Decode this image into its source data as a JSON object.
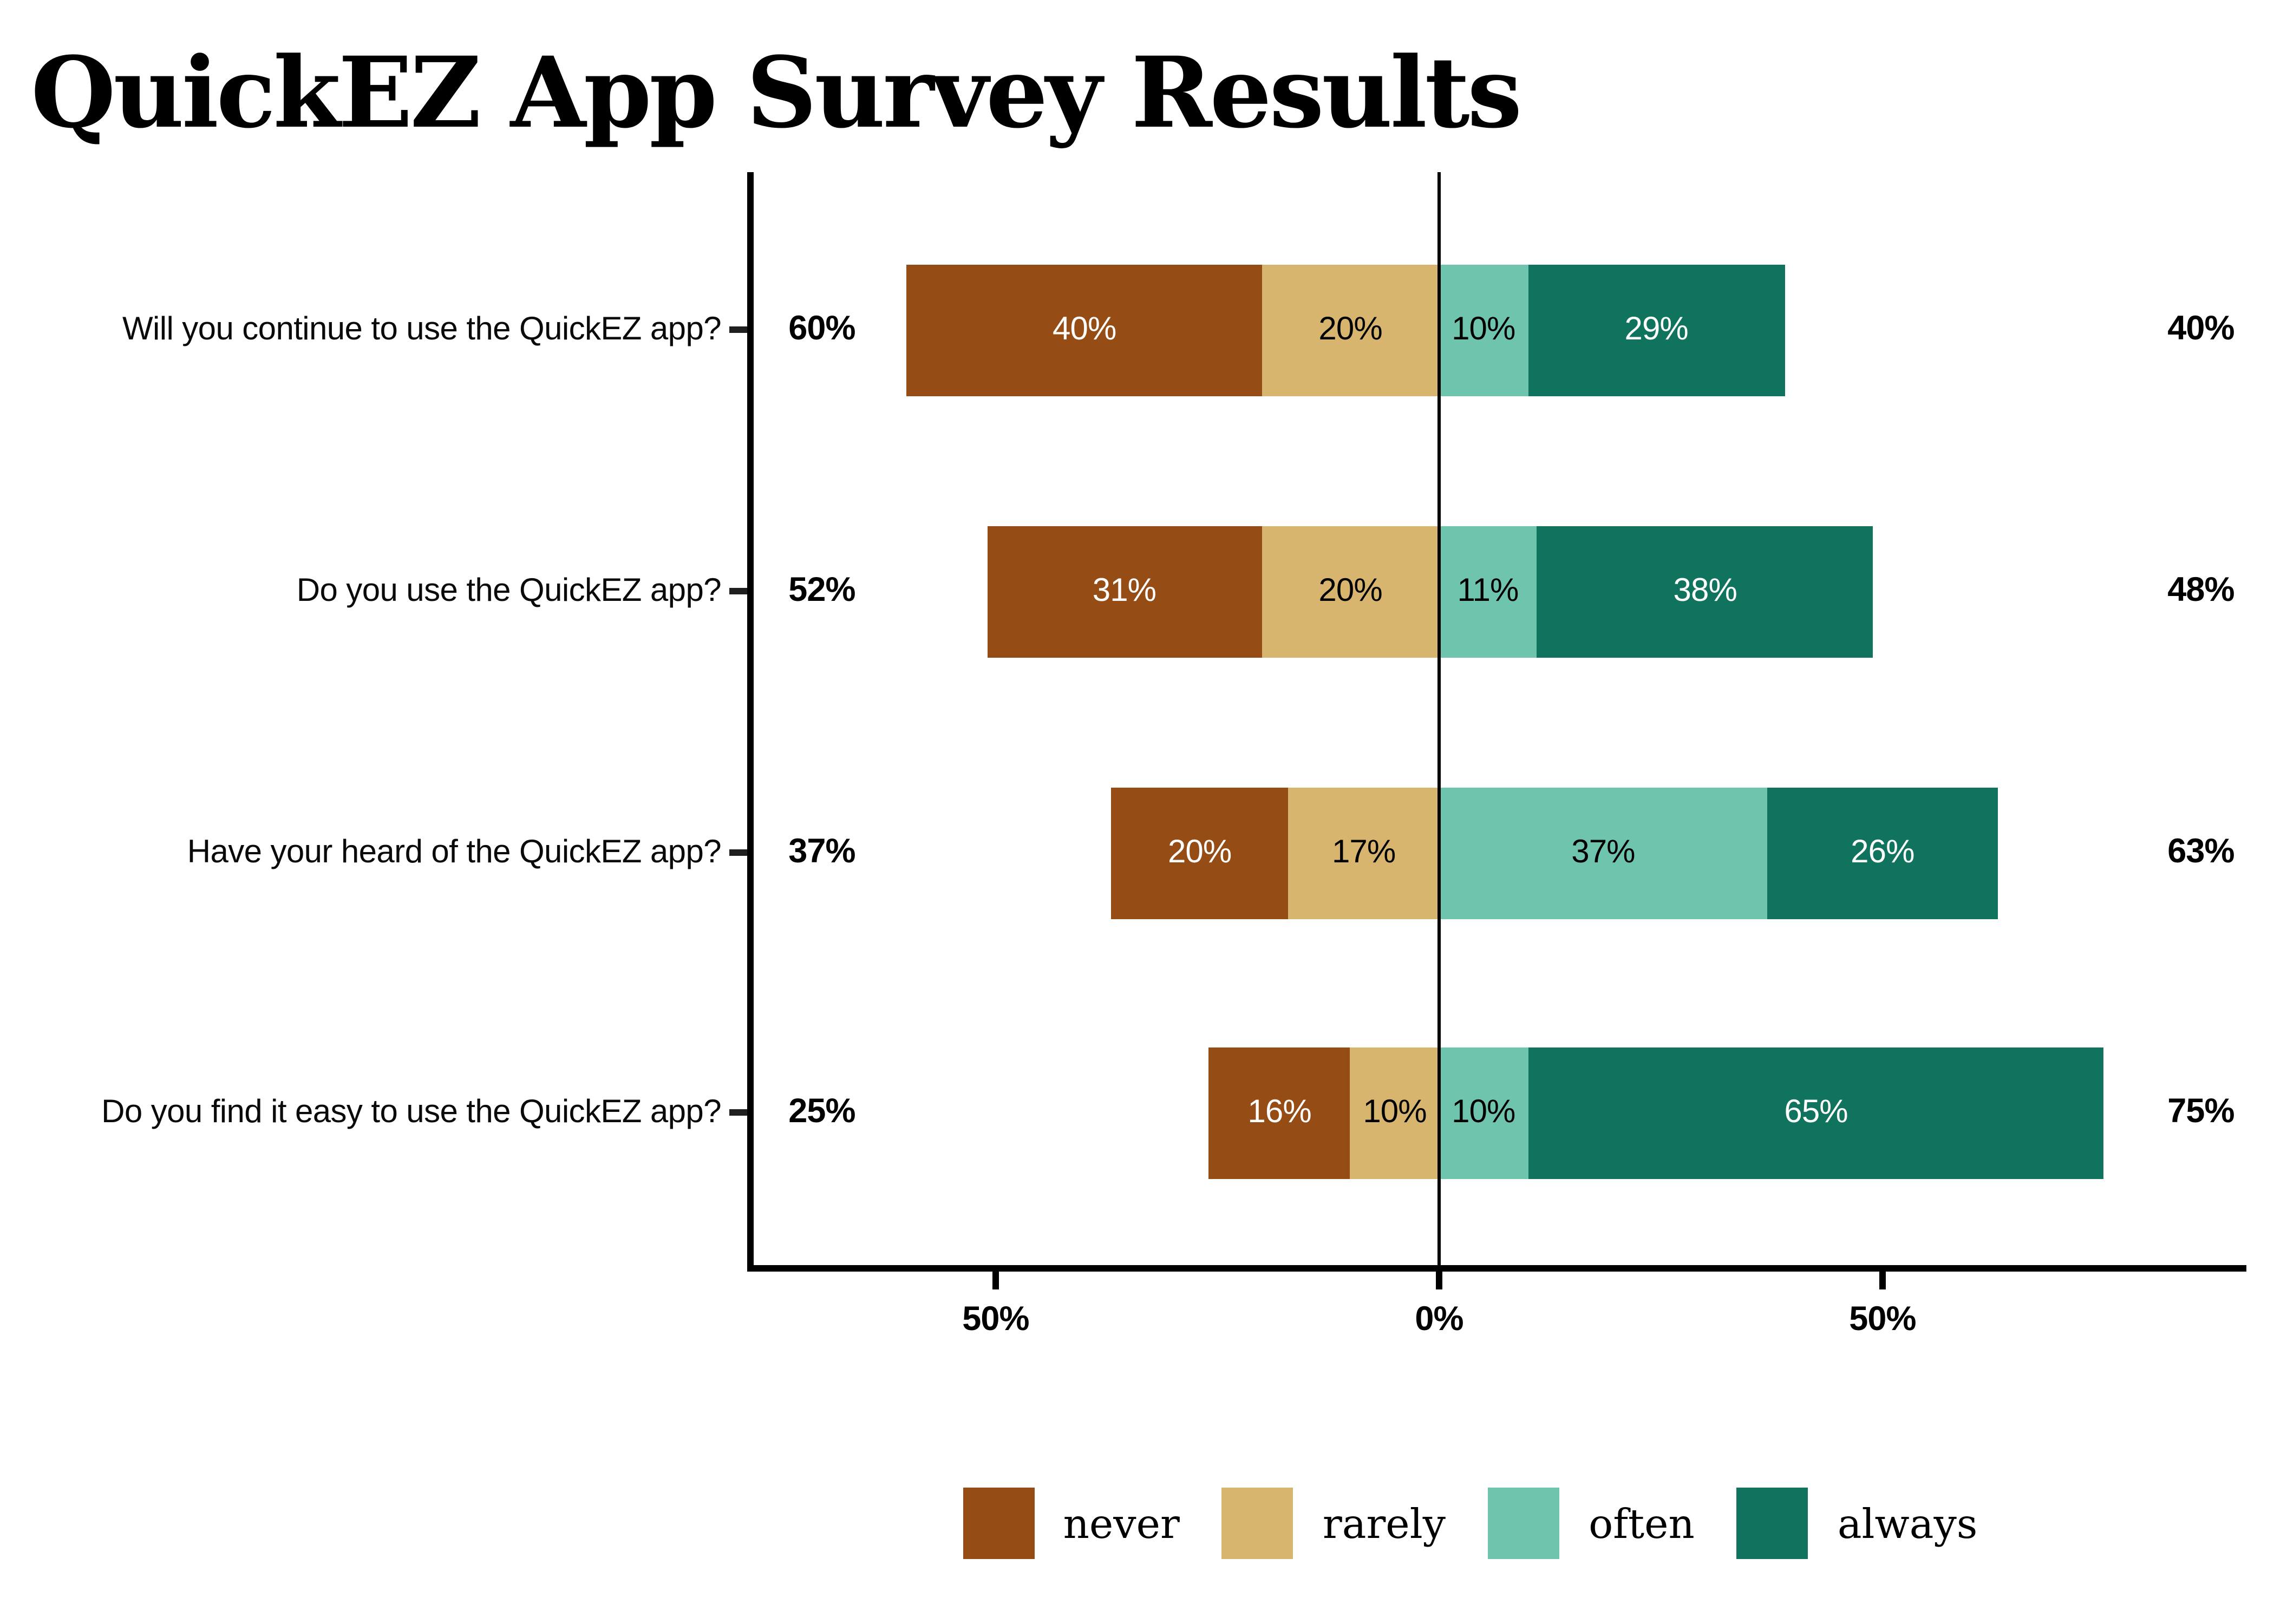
{
  "title": "QuickEZ App Survey Results",
  "chart_data": {
    "type": "bar",
    "variant": "diverging-stacked-horizontal",
    "title": "QuickEZ App Survey Results",
    "categories": [
      "Will you continue to use the QuickEZ app?",
      "Do you use the QuickEZ app?",
      "Have your heard of the QuickEZ app?",
      "Do you find it easy to use the QuickEZ app?"
    ],
    "series": [
      {
        "name": "never",
        "color": "#964C15",
        "label_color": "#FFFFFF",
        "values": [
          40,
          31,
          20,
          16
        ],
        "labels": [
          "40%",
          "31%",
          "20%",
          "16%"
        ]
      },
      {
        "name": "rarely",
        "color": "#D8B56F",
        "label_color": "#000000",
        "values": [
          20,
          20,
          17,
          10
        ],
        "labels": [
          "20%",
          "20%",
          "17%",
          "10%"
        ]
      },
      {
        "name": "often",
        "color": "#6FC4AD",
        "label_color": "#000000",
        "values": [
          10,
          11,
          37,
          10
        ],
        "labels": [
          "10%",
          "11%",
          "37%",
          "10%"
        ]
      },
      {
        "name": "always",
        "color": "#10735E",
        "label_color": "#FFFFFF",
        "values": [
          29,
          38,
          26,
          65
        ],
        "labels": [
          "29%",
          "38%",
          "26%",
          "65%"
        ]
      }
    ],
    "left_totals": [
      "60%",
      "52%",
      "37%",
      "25%"
    ],
    "right_totals": [
      "40%",
      "48%",
      "63%",
      "75%"
    ],
    "x_axis": {
      "tick_labels": [
        "50%",
        "0%",
        "50%"
      ],
      "tick_values": [
        -50,
        0,
        50
      ],
      "xlim": [
        -78,
        93
      ],
      "zero_line": true
    },
    "legend": {
      "position": "bottom",
      "entries": [
        {
          "label": "never",
          "color": "#964C15"
        },
        {
          "label": "rarely",
          "color": "#D8B56F"
        },
        {
          "label": "often",
          "color": "#6FC4AD"
        },
        {
          "label": "always",
          "color": "#10735E"
        }
      ]
    },
    "grid": false,
    "axis_color": "#000000",
    "background_color": "#FFFFFF"
  }
}
